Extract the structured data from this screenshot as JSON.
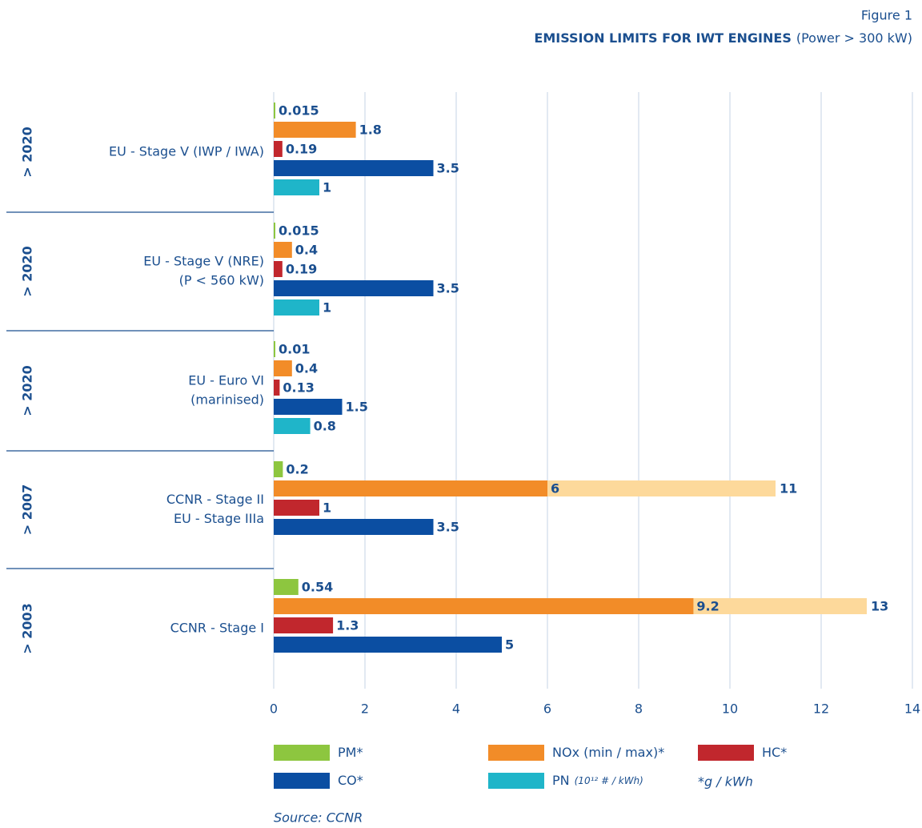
{
  "chart_data": {
    "type": "bar",
    "orientation": "horizontal",
    "figure_label": "Figure 1",
    "title": "EMISSION LIMITS FOR IWT ENGINES",
    "subtitle": "(Power > 300 kW)",
    "group_labels": [
      "> 2020",
      "> 2020",
      "> 2020",
      "> 2007",
      "> 2003"
    ],
    "categories": [
      [
        "EU - Stage V (IWP / IWA)"
      ],
      [
        "EU - Stage V (NRE)",
        "(P < 560 kW)"
      ],
      [
        "EU - Euro VI",
        "(marinised)"
      ],
      [
        "CCNR - Stage II",
        "EU - Stage IIIa"
      ],
      [
        "CCNR - Stage I"
      ]
    ],
    "series": [
      {
        "name": "PM*",
        "color": "#8dc63f",
        "values": [
          0.015,
          0.015,
          0.01,
          0.2,
          0.54
        ]
      },
      {
        "name": "NOx (min / max)*",
        "color": "#f28c28",
        "max_color": "#fdd99b",
        "values": [
          1.8,
          0.4,
          0.4,
          6,
          9.2
        ],
        "max_values": [
          null,
          null,
          null,
          11,
          13
        ]
      },
      {
        "name": "HC*",
        "color": "#c1272d",
        "values": [
          0.19,
          0.19,
          0.13,
          1,
          1.3
        ]
      },
      {
        "name": "CO*",
        "color": "#0b4ea2",
        "values": [
          3.5,
          3.5,
          1.5,
          3.5,
          5
        ]
      },
      {
        "name": "PN",
        "unit": "(10¹² # / kWh)",
        "color": "#1fb5c9",
        "values": [
          1,
          1,
          0.8,
          null,
          null
        ]
      }
    ],
    "unit_note": "*g / kWh",
    "xlim": [
      0,
      14
    ],
    "xticks": [
      0,
      2,
      4,
      6,
      8,
      10,
      12,
      14
    ],
    "grid": true,
    "source": "Source: CCNR"
  }
}
